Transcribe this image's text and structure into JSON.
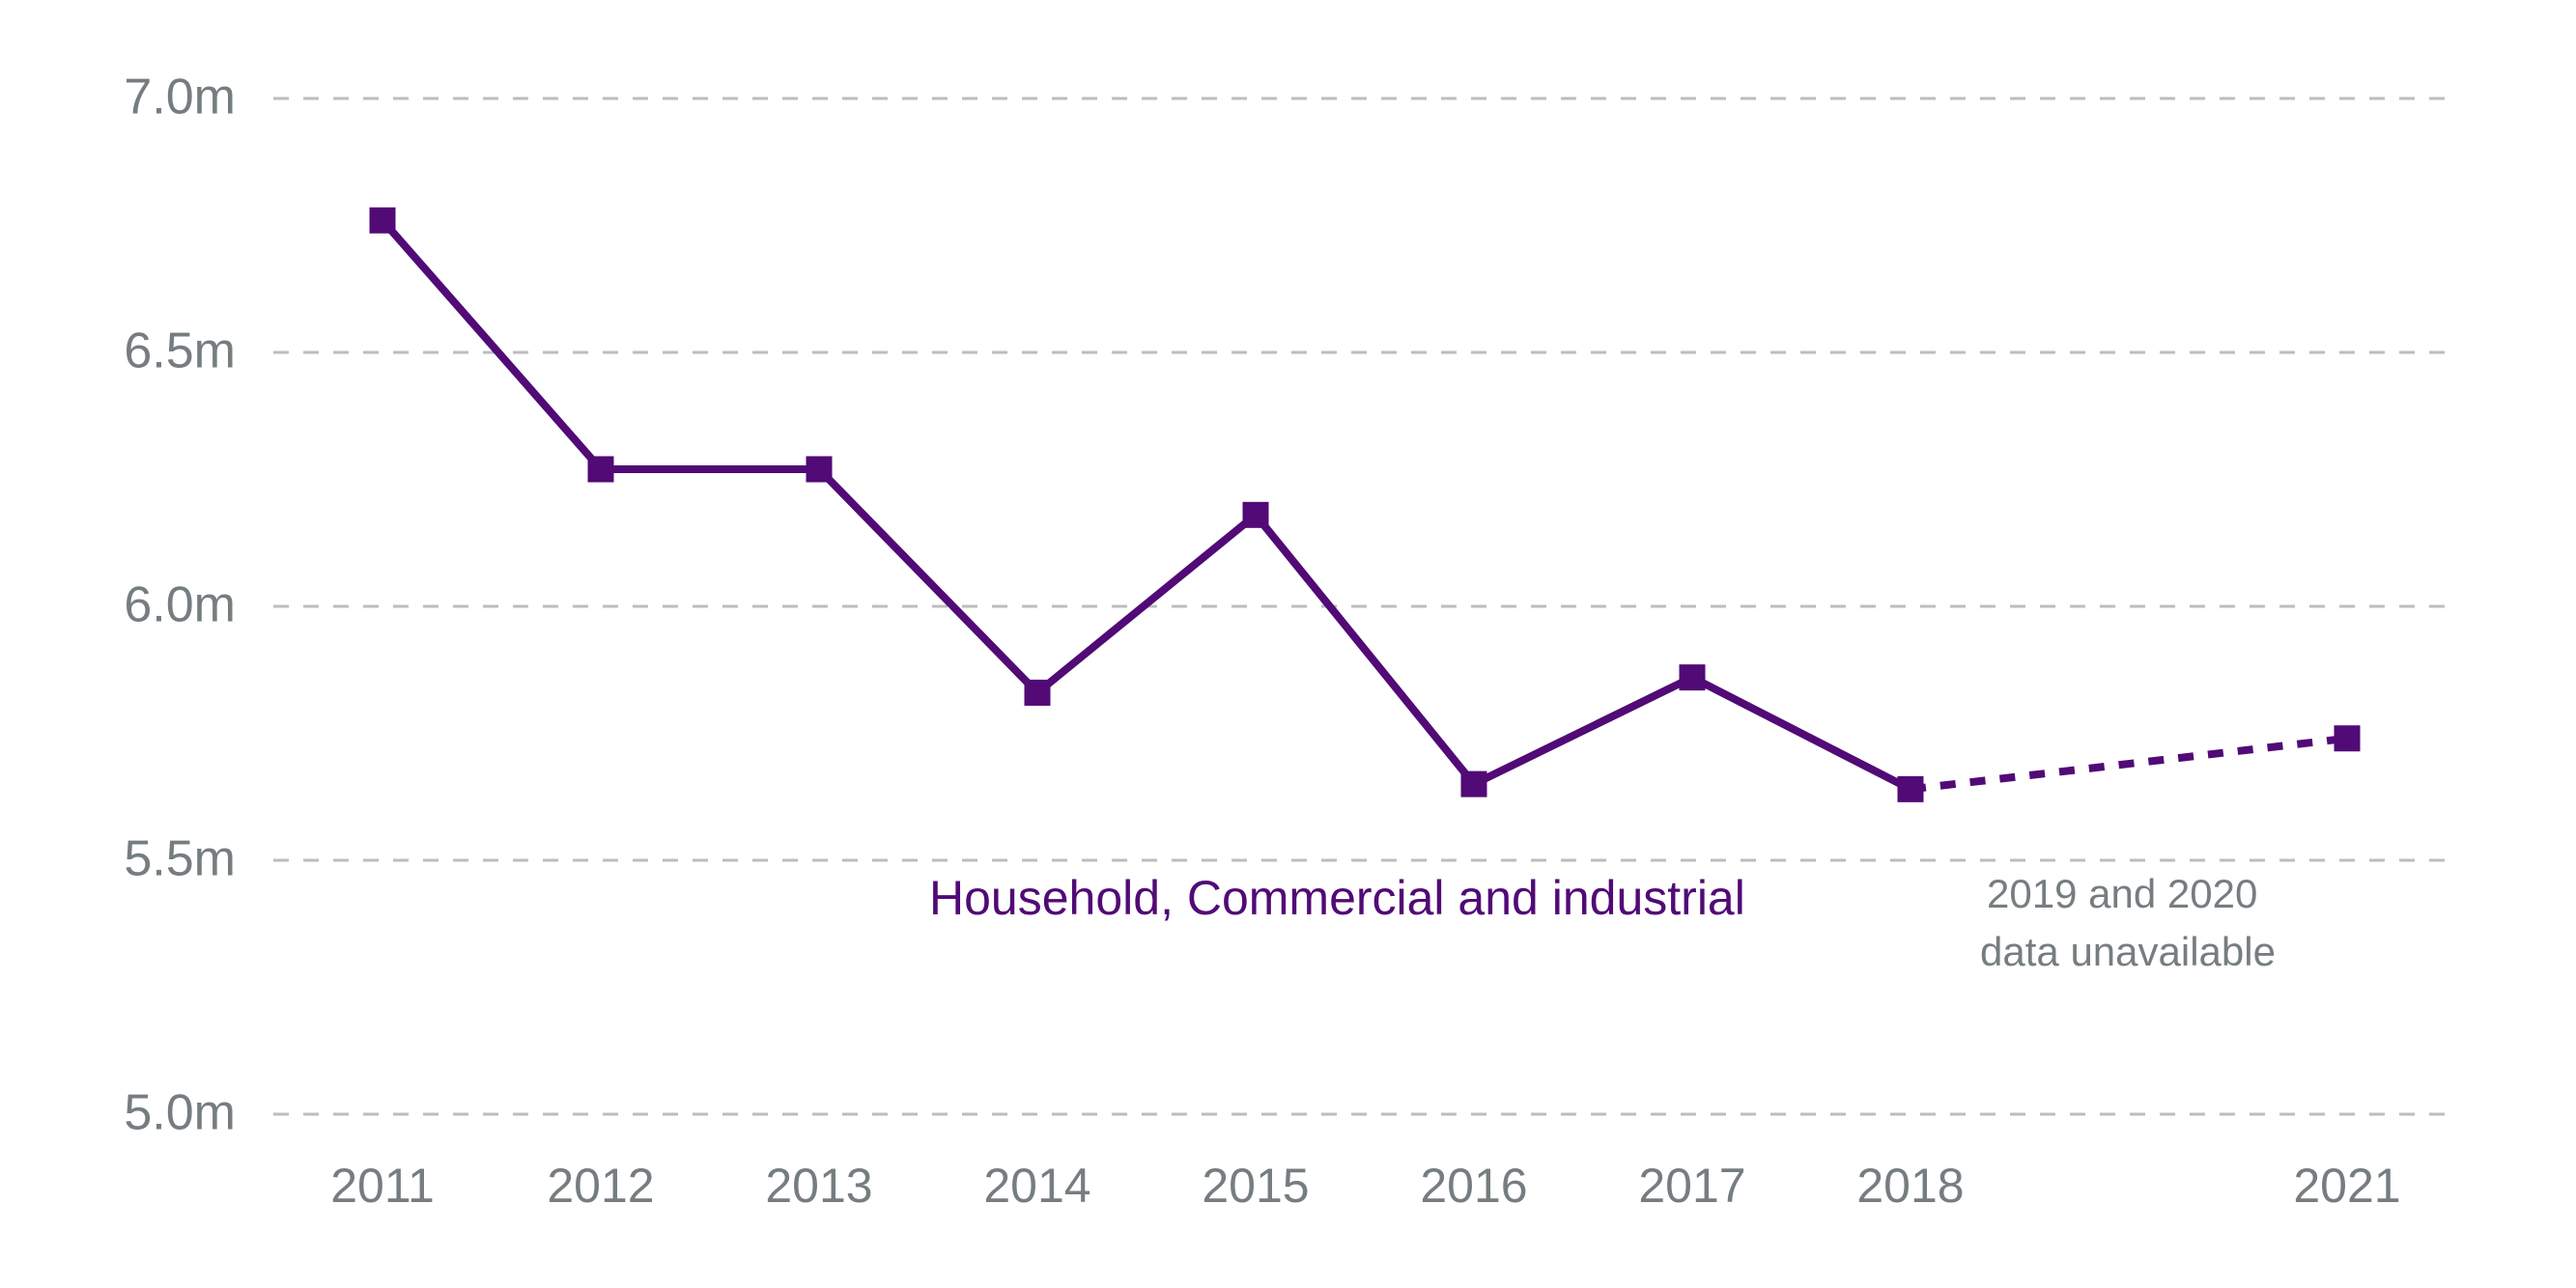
{
  "chart_data": {
    "type": "line",
    "title": "",
    "xlabel": "",
    "ylabel": "",
    "categories": [
      "2011",
      "2012",
      "2013",
      "2014",
      "2015",
      "2016",
      "2017",
      "2018",
      "2021"
    ],
    "category_slots": [
      0,
      1,
      2,
      3,
      4,
      5,
      6,
      7,
      9
    ],
    "y_ticks": [
      5.0,
      5.5,
      6.0,
      6.5,
      7.0
    ],
    "y_tick_labels": [
      "5.0m",
      "5.5m",
      "6.0m",
      "6.5m",
      "7.0m"
    ],
    "ylim": [
      5.0,
      7.0
    ],
    "grid": true,
    "series": [
      {
        "name": "Household, Commercial and industrial",
        "color": "#510a76",
        "values": [
          6.76,
          6.27,
          6.27,
          5.83,
          6.18,
          5.65,
          5.86,
          5.64,
          5.74
        ],
        "marker": "square",
        "gap_dashed_between": [
          "2018",
          "2021"
        ]
      }
    ],
    "series_label": "Household, Commercial and industrial",
    "annotations": [
      {
        "lines": [
          "2019 and 2020",
          "data unavailable"
        ],
        "near": "between 2018 and 2021, below line"
      }
    ],
    "colors": {
      "axis_text": "#767d80",
      "grid": "#bdbdbd",
      "series": "#510a76"
    }
  }
}
